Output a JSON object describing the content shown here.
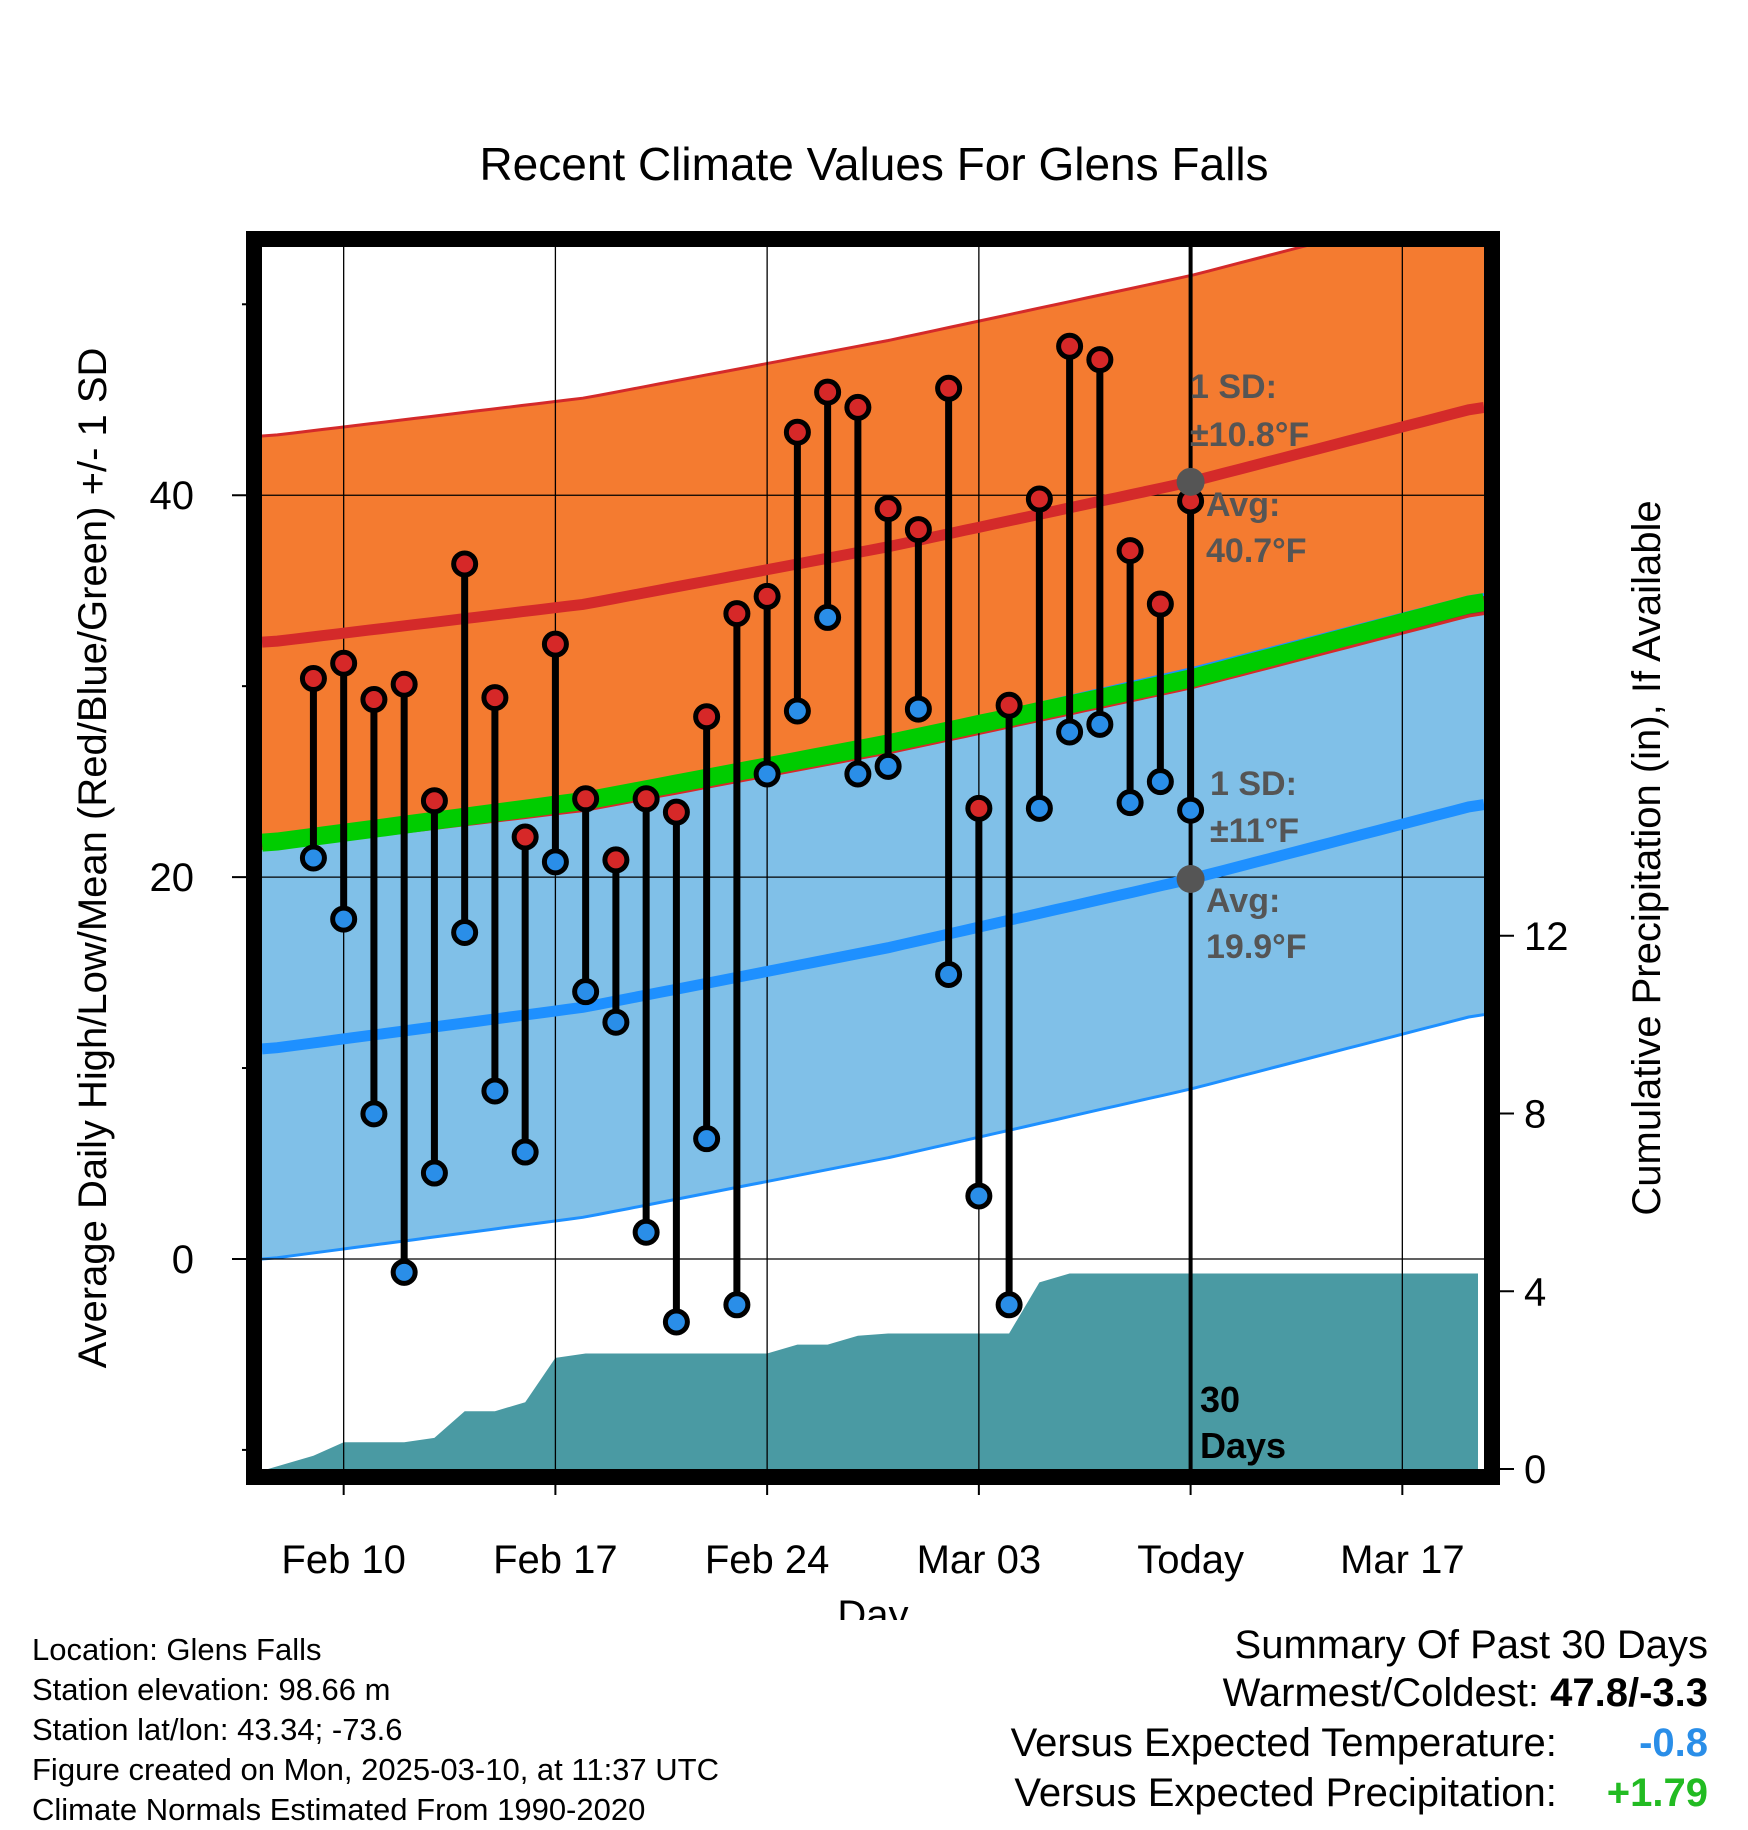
{
  "chart_data": {
    "type": "line",
    "title": "Recent Climate Values For Glens Falls",
    "xlabel": "Day",
    "ylabel": "Average Daily High/Low/Mean (Red/Blue/Green) +/- 1 SD",
    "y2label": "Cumulative Precipitation (in), If Available",
    "x_tick_labels": [
      "Feb 10",
      "Feb 17",
      "Feb 24",
      "Mar 03",
      "Today",
      "Mar 17"
    ],
    "x_tick_days": [
      2,
      9,
      16,
      23,
      30,
      37
    ],
    "xlim": [
      -0.7,
      39.7
    ],
    "today_day": 30,
    "ylim": [
      -11,
      53
    ],
    "y_ticks": [
      0,
      20,
      40
    ],
    "y2lim": [
      0,
      27.5
    ],
    "y2_ticks": [
      0,
      4,
      8,
      12
    ],
    "normal_high": {
      "days": [
        -0.5,
        10,
        20,
        30,
        39.5
      ],
      "values": [
        32.3,
        34.3,
        37.3,
        40.7,
        44.6
      ]
    },
    "normal_high_sd": 10.8,
    "normal_low": {
      "days": [
        -0.5,
        10,
        20,
        30,
        39.5
      ],
      "values": [
        11.0,
        13.2,
        16.3,
        19.9,
        23.8
      ]
    },
    "normal_low_sd": 11,
    "normal_mean": {
      "days": [
        -0.5,
        10,
        20,
        30,
        39.5
      ],
      "values": [
        21.8,
        24.0,
        27.0,
        30.4,
        34.4
      ]
    },
    "daily": {
      "days": [
        1,
        2,
        3,
        4,
        5,
        6,
        7,
        8,
        9,
        10,
        11,
        12,
        13,
        14,
        15,
        16,
        17,
        18,
        19,
        20,
        21,
        22,
        23,
        24,
        25,
        26,
        27,
        28,
        29
      ],
      "highs": [
        30.4,
        31.2,
        29.3,
        30.1,
        24.0,
        36.4,
        29.4,
        22.1,
        32.2,
        24.1,
        20.9,
        24.1,
        23.4,
        28.4,
        33.8,
        34.7,
        43.3,
        45.4,
        44.6,
        39.3,
        38.2,
        45.6,
        23.6,
        29.0,
        39.8,
        47.8,
        47.1,
        37.1,
        34.3
      ],
      "lows": [
        21.0,
        17.8,
        7.6,
        -0.7,
        4.5,
        17.1,
        8.8,
        5.6,
        20.8,
        14.0,
        12.4,
        1.4,
        -3.3,
        6.3,
        -2.4,
        25.4,
        28.7,
        33.6,
        25.4,
        25.8,
        28.8,
        14.9,
        3.3,
        -2.4,
        23.6,
        27.6,
        28.0,
        23.9,
        25.0
      ]
    },
    "extra_days": [
      30
    ],
    "extra_highs": [
      39.7
    ],
    "extra_lows": [
      23.5
    ],
    "precip": {
      "days": [
        -0.5,
        1,
        2,
        3,
        4,
        5,
        6,
        7,
        8,
        9,
        10,
        15,
        16,
        17,
        18,
        19,
        20,
        21,
        22,
        23,
        24,
        25,
        26,
        27,
        39.5
      ],
      "cum": [
        0,
        0.3,
        0.6,
        0.6,
        0.6,
        0.7,
        1.3,
        1.3,
        1.5,
        2.5,
        2.6,
        2.6,
        2.6,
        2.8,
        2.8,
        3.0,
        3.05,
        3.05,
        3.05,
        3.05,
        3.05,
        4.2,
        4.4,
        4.4,
        4.4
      ]
    },
    "annotations": {
      "high_sd": "1 SD:",
      "high_sd_value": "±10.8°F",
      "high_avg": "Avg:",
      "high_avg_value": "40.7°F",
      "low_sd": "1 SD:",
      "low_sd_value": "±11°F",
      "low_avg": "Avg:",
      "low_avg_value": "19.9°F",
      "days_num": "30",
      "days_word": "Days"
    },
    "colors": {
      "high_band": "#f47b30",
      "high_line": "#d42a2a",
      "low_band": "#80c0e8",
      "low_line": "#1e90ff",
      "mean_line": "#00cc00",
      "overlap": "#9a1a1a",
      "precip": "#4a9aa3",
      "high_dot": "#d62828",
      "low_dot": "#2a8ee8",
      "avg_dot": "#555555"
    }
  },
  "footer": {
    "location": "Location: Glens Falls",
    "elevation": "Station elevation: 98.66 m",
    "latlon": "Station lat/lon: 43.34; -73.6",
    "created": "Figure created on Mon, 2025-03-10, at 11:37 UTC",
    "normals": "Climate Normals Estimated From 1990-2020"
  },
  "summary": {
    "heading": "Summary Of Past 30 Days",
    "warm_cold_label": "Warmest/Coldest:",
    "warm_cold_value": "47.8/-3.3",
    "temp_label": "Versus Expected Temperature:",
    "temp_value": "-0.8",
    "temp_color": "#2a8ee8",
    "precip_label": "Versus Expected Precipitation:",
    "precip_value": "+1.79",
    "precip_color": "#22bb22"
  }
}
